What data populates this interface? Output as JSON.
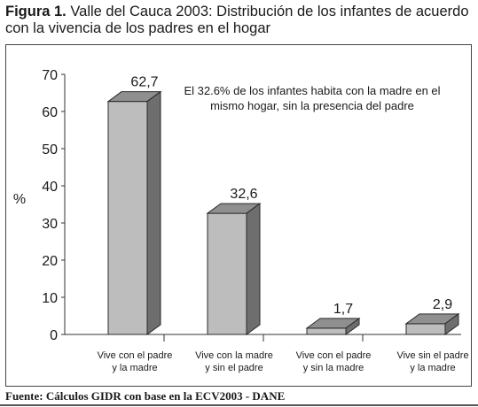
{
  "figure": {
    "label": "Figura 1.",
    "title": "Valle del Cauca 2003: Distribución de los infantes de acuerdo con la vivencia de los padres en el hogar"
  },
  "source": "Fuente: Cálculos GIDR con base en la ECV2003 - DANE",
  "chart_data": {
    "type": "bar",
    "categories": [
      [
        "Vive con el padre",
        "y la madre"
      ],
      [
        "Vive con la madre",
        "y sin el padre"
      ],
      [
        "Vive con el padre",
        "y sin la madre"
      ],
      [
        "Vive sin el padre",
        "y la madre"
      ]
    ],
    "values": [
      62.7,
      32.6,
      1.7,
      2.9
    ],
    "value_labels": [
      "62,7",
      "32,6",
      "1,7",
      "2,9"
    ],
    "ylabel": "%",
    "ylim": [
      0,
      70
    ],
    "yticks": [
      0,
      10,
      20,
      30,
      40,
      50,
      60,
      70
    ],
    "grid": false,
    "annotation": [
      "El 32.6% de los infantes habita con la madre en el",
      "mismo hogar, sin la presencia del padre"
    ],
    "colors": {
      "front": "#bdbdbd",
      "side": "#6e6e6e",
      "top": "#8f8f8f",
      "outline": "#2a2a2a"
    }
  }
}
